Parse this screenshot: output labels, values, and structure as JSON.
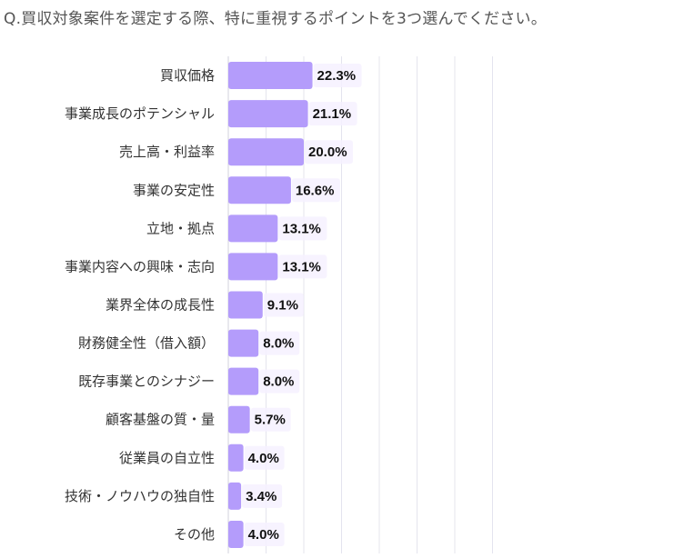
{
  "question": "Q.買収対象案件を選定する際、特に重視するポイントを3つ選んでください。",
  "colors": {
    "bar": "#b49cfb",
    "grid": "#e4e4ee",
    "label_bg": "#f6f1ff"
  },
  "chart_data": {
    "type": "bar",
    "orientation": "horizontal",
    "title": "",
    "xlabel": "",
    "ylabel": "",
    "xlim": [
      0,
      70
    ],
    "value_unit": "%",
    "grid": true,
    "categories": [
      "買収価格",
      "事業成長のポテンシャル",
      "売上高・利益率",
      "事業の安定性",
      "立地・拠点",
      "事業内容への興味・志向",
      "業界全体の成長性",
      "財務健全性（借入額）",
      "既存事業とのシナジー",
      "顧客基盤の質・量",
      "従業員の自立性",
      "技術・ノウハウの独自性",
      "その他"
    ],
    "values": [
      22.3,
      21.1,
      20.0,
      16.6,
      13.1,
      13.1,
      9.1,
      8.0,
      8.0,
      5.7,
      4.0,
      3.4,
      4.0
    ],
    "value_labels": [
      "22.3%",
      "21.1%",
      "20.0%",
      "16.6%",
      "13.1%",
      "13.1%",
      "9.1%",
      "8.0%",
      "8.0%",
      "5.7%",
      "4.0%",
      "3.4%",
      "4.0%"
    ]
  }
}
